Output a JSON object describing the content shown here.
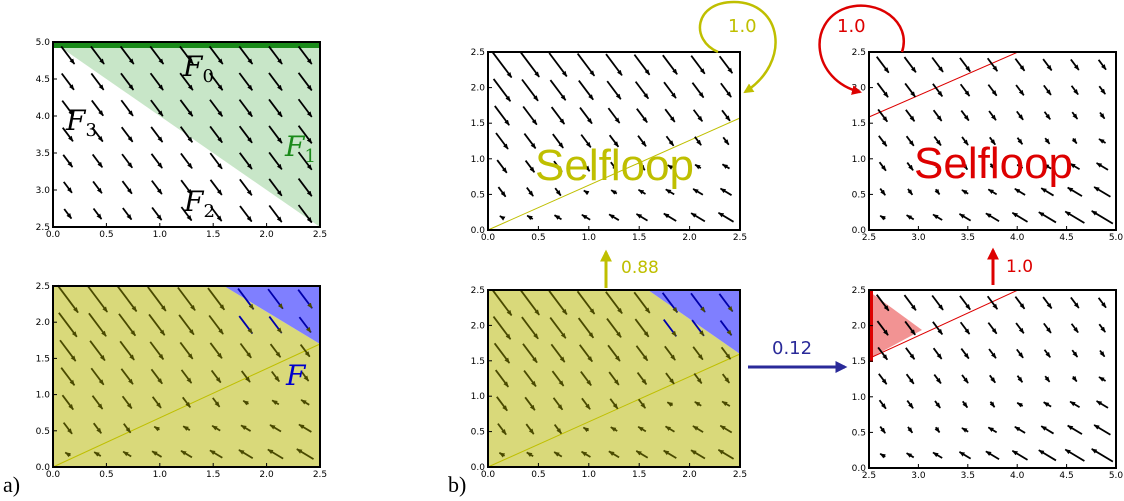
{
  "panel_labels": {
    "a": "a)",
    "b": "b)"
  },
  "plot_a_top": {
    "xticks": [
      "0.0",
      "0.5",
      "1.0",
      "1.5",
      "2.0",
      "2.5"
    ],
    "yticks": [
      "2.5",
      "3.0",
      "3.5",
      "4.0",
      "4.5",
      "5.0"
    ],
    "regions": [
      {
        "main": "F",
        "sub": "0",
        "color": "#000000"
      },
      {
        "main": "F",
        "sub": "1",
        "color": "#2ca02c"
      },
      {
        "main": "F",
        "sub": "2",
        "color": "#000000"
      },
      {
        "main": "F",
        "sub": "3",
        "color": "#000000"
      }
    ]
  },
  "plot_a_bottom": {
    "xticks": [
      "0.0",
      "0.5",
      "1.0",
      "1.5",
      "2.0",
      "2.5"
    ],
    "yticks": [
      "0.0",
      "0.5",
      "1.0",
      "1.5",
      "2.0",
      "2.5"
    ],
    "region_label": "F",
    "region_label_color": "#0000cc"
  },
  "plot_b_source": {
    "xticks": [
      "0.0",
      "0.5",
      "1.0",
      "1.5",
      "2.0",
      "2.5"
    ],
    "yticks": [
      "0.0",
      "0.5",
      "1.0",
      "1.5",
      "2.0",
      "2.5"
    ]
  },
  "plot_b_yellow": {
    "xticks": [
      "0.0",
      "0.5",
      "1.0",
      "1.5",
      "2.0",
      "2.5"
    ],
    "yticks": [
      "0.0",
      "0.5",
      "1.0",
      "1.5",
      "2.0",
      "2.5"
    ],
    "label": "Selfloop",
    "selfloop_prob": "1.0"
  },
  "plot_b_red_entry": {
    "xticks": [
      "2.5",
      "3.0",
      "3.5",
      "4.0",
      "4.5",
      "5.0"
    ],
    "yticks": [
      "0.0",
      "0.5",
      "1.0",
      "1.5",
      "2.0",
      "2.5"
    ]
  },
  "plot_b_red_top": {
    "xticks": [
      "2.5",
      "3.0",
      "3.5",
      "4.0",
      "4.5",
      "5.0"
    ],
    "yticks": [
      "0.0",
      "0.5",
      "1.0",
      "1.5",
      "2.0",
      "2.5"
    ],
    "label": "Selfloop",
    "selfloop_prob": "1.0"
  },
  "transitions": {
    "to_yellow": "0.88",
    "to_red": "0.12",
    "red_to_red": "1.0"
  },
  "colors": {
    "yellow": "#bfbf00",
    "yellow_fill": "#d9d97a",
    "blue_fill": "#7f7fff",
    "red": "#dd0000",
    "navy": "#2a2a99",
    "green": "#1a8a1a",
    "green_fill": "#c8e6c8"
  }
}
